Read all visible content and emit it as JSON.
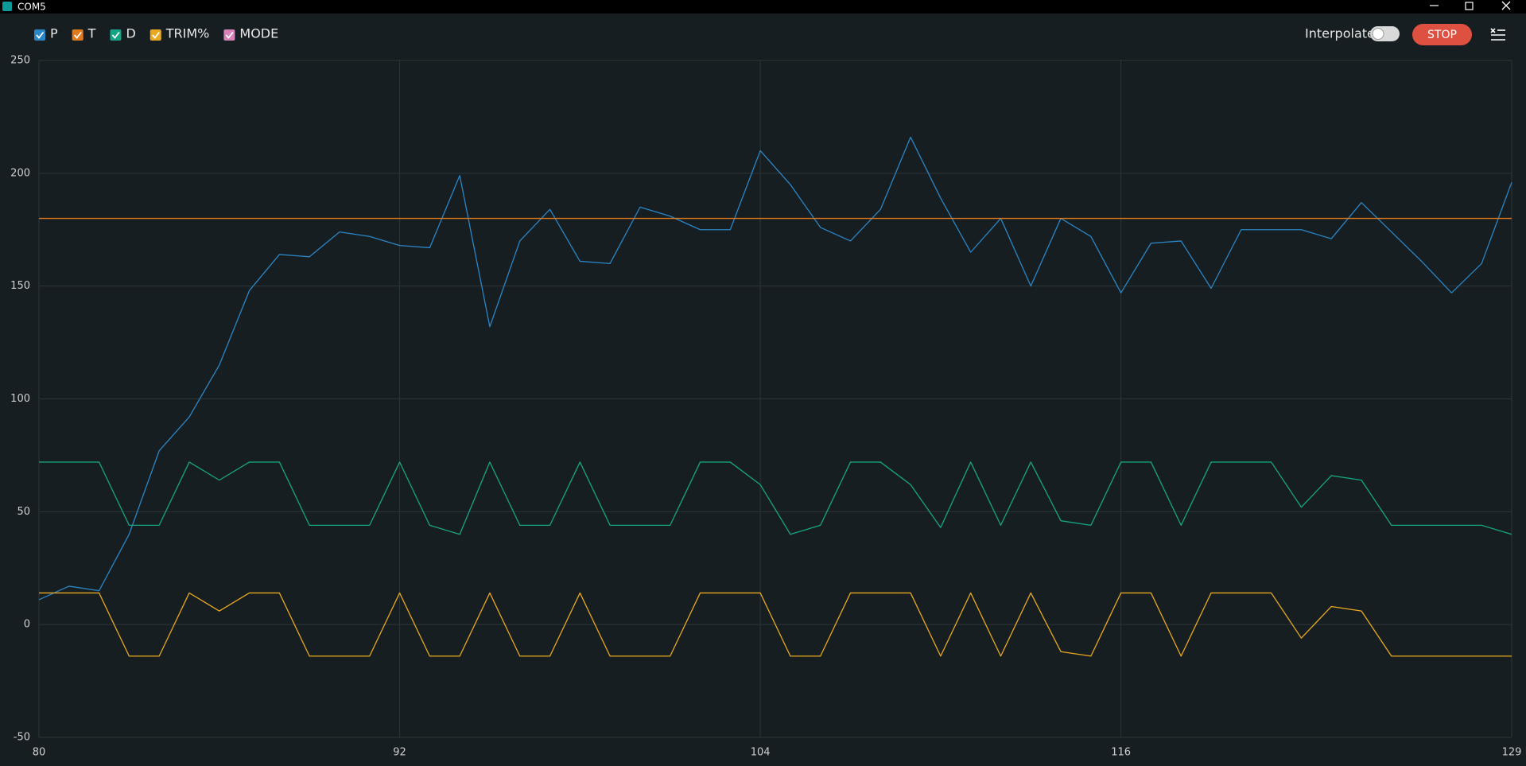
{
  "window": {
    "title": "COM5"
  },
  "toolbar": {
    "interpolate": "Interpolate",
    "stop": "STOP"
  },
  "chart_data": {
    "type": "line",
    "x": [
      80,
      81,
      82,
      83,
      84,
      85,
      86,
      87,
      88,
      89,
      90,
      91,
      92,
      93,
      94,
      95,
      96,
      97,
      98,
      99,
      100,
      101,
      102,
      103,
      104,
      105,
      106,
      107,
      108,
      109,
      110,
      111,
      112,
      113,
      114,
      115,
      116,
      117,
      118,
      119,
      120,
      121,
      122,
      123,
      124,
      125,
      126,
      127,
      128,
      129
    ],
    "series": [
      {
        "name": "P",
        "color": "#2a86c6",
        "values": [
          11,
          17,
          15,
          40,
          77,
          92,
          115,
          148,
          164,
          163,
          174,
          172,
          168,
          167,
          199,
          132,
          170,
          184,
          161,
          160,
          185,
          181,
          175,
          175,
          210,
          195,
          176,
          170,
          184,
          216,
          189,
          165,
          180,
          150,
          180,
          172,
          147,
          169,
          170,
          149,
          175,
          175,
          175,
          171,
          187,
          174,
          161,
          147,
          160,
          196
        ]
      },
      {
        "name": "T",
        "color": "#df7a1c",
        "values": [
          180,
          180,
          180,
          180,
          180,
          180,
          180,
          180,
          180,
          180,
          180,
          180,
          180,
          180,
          180,
          180,
          180,
          180,
          180,
          180,
          180,
          180,
          180,
          180,
          180,
          180,
          180,
          180,
          180,
          180,
          180,
          180,
          180,
          180,
          180,
          180,
          180,
          180,
          180,
          180,
          180,
          180,
          180,
          180,
          180,
          180,
          180,
          180,
          180,
          180
        ]
      },
      {
        "name": "D",
        "color": "#16a584",
        "values": [
          72,
          72,
          72,
          44,
          44,
          72,
          64,
          72,
          72,
          44,
          44,
          44,
          72,
          44,
          40,
          72,
          44,
          44,
          72,
          44,
          44,
          44,
          72,
          72,
          62,
          40,
          44,
          72,
          72,
          62,
          43,
          72,
          44,
          72,
          46,
          44,
          72,
          72,
          44,
          72,
          72,
          72,
          52,
          66,
          64,
          44,
          44,
          44,
          44,
          40
        ]
      },
      {
        "name": "TRIM%",
        "color": "#e7a91f",
        "values": [
          14,
          14,
          14,
          -14,
          -14,
          14,
          6,
          14,
          14,
          -14,
          -14,
          -14,
          14,
          -14,
          -14,
          14,
          -14,
          -14,
          14,
          -14,
          -14,
          -14,
          14,
          14,
          14,
          -14,
          -14,
          14,
          14,
          14,
          -14,
          14,
          -14,
          14,
          -12,
          -14,
          14,
          14,
          -14,
          14,
          14,
          14,
          -6,
          8,
          6,
          -14,
          -14,
          -14,
          -14,
          -14
        ]
      },
      {
        "name": "MODE",
        "color": "#d583b8",
        "values": [
          null,
          null,
          null,
          null,
          null,
          null,
          null,
          null,
          null,
          null,
          null,
          null,
          null,
          null,
          null,
          null,
          null,
          null,
          null,
          null,
          null,
          null,
          null,
          null,
          null,
          null,
          null,
          null,
          null,
          null,
          null,
          null,
          null,
          null,
          null,
          null,
          null,
          null,
          null,
          null,
          null,
          null,
          null,
          null,
          null,
          null,
          null,
          null,
          null,
          null
        ]
      }
    ],
    "xlim": [
      80,
      129
    ],
    "ylim": [
      -50,
      250
    ],
    "xticks": [
      80,
      92,
      104,
      116,
      129
    ],
    "yticks": [
      -50,
      0,
      50,
      100,
      150,
      200,
      250
    ],
    "grid": true
  }
}
